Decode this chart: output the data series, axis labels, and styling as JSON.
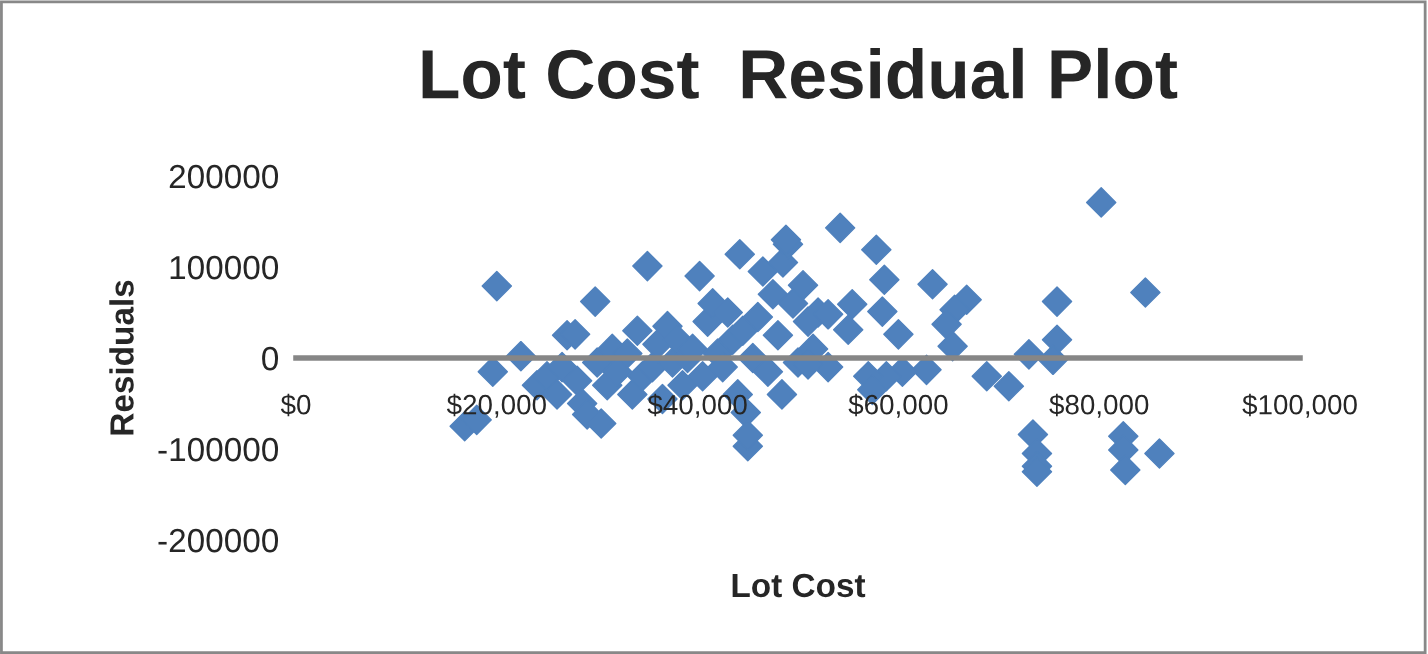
{
  "chart_data": {
    "type": "scatter",
    "title": "Lot Cost  Residual Plot",
    "xlabel": "Lot Cost",
    "ylabel": "Residuals",
    "series": [
      {
        "color": "#4f81bd",
        "x": [
          16800,
          18000,
          19600,
          20000,
          22400,
          24000,
          25000,
          26000,
          26500,
          27000,
          27800,
          28000,
          28500,
          29000,
          29800,
          30400,
          30000,
          31000,
          31500,
          32000,
          33000,
          33500,
          34000,
          34500,
          35000,
          35500,
          36000,
          36500,
          37000,
          37500,
          38000,
          38500,
          39000,
          39500,
          40200,
          40500,
          41000,
          41500,
          42000,
          42500,
          43000,
          43500,
          44000,
          44200,
          44500,
          44800,
          45000,
          45000,
          45500,
          46000,
          46500,
          47000,
          47500,
          48000,
          48500,
          49000,
          49500,
          50000,
          50500,
          51000,
          51500,
          52000,
          53000,
          54200,
          57800,
          58600,
          48800,
          63400,
          66800,
          65600,
          75800,
          64800,
          65400,
          60000,
          55400,
          58400,
          55000,
          53000,
          75800,
          73000,
          75400,
          68800,
          71000,
          62800,
          60400,
          58800,
          57000,
          57400,
          51000,
          48400,
          73400,
          73800,
          73800,
          73800,
          80200,
          84600,
          82400,
          82400,
          82600,
          86000
        ],
        "values": [
          -75000,
          -68000,
          -15000,
          79000,
          2000,
          -30000,
          -20000,
          -40000,
          -10000,
          25000,
          26000,
          -25000,
          -50000,
          -62000,
          62000,
          -72000,
          -5000,
          -30000,
          10000,
          -15000,
          5000,
          -40000,
          30000,
          -20000,
          101000,
          -10000,
          15000,
          -45000,
          35000,
          -5000,
          20000,
          -30000,
          0,
          10000,
          90000,
          -20000,
          40000,
          60000,
          5000,
          -10000,
          50000,
          20000,
          -40000,
          114000,
          30000,
          -60000,
          -97000,
          -85000,
          0,
          45000,
          95000,
          -15000,
          70000,
          25000,
          105000,
          125000,
          60000,
          -5000,
          80000,
          40000,
          10000,
          50000,
          -10000,
          143000,
          119000,
          86000,
          130000,
          81000,
          64000,
          53000,
          62000,
          37000,
          13000,
          26000,
          59000,
          51000,
          31000,
          48000,
          20000,
          4000,
          -2000,
          -20000,
          -31000,
          -13000,
          -15000,
          -20000,
          -20000,
          -35000,
          -7000,
          -40000,
          -84000,
          -105000,
          -119000,
          -125000,
          171000,
          72000,
          -86000,
          -101000,
          -123000,
          -105000
        ]
      }
    ],
    "marker": "diamond",
    "grid": false,
    "legend": false,
    "xlim": [
      0,
      100000
    ],
    "xticks": [
      {
        "value": 0,
        "label": "$0"
      },
      {
        "value": 20000,
        "label": "$20,000"
      },
      {
        "value": 40000,
        "label": "$40,000"
      },
      {
        "value": 60000,
        "label": "$60,000"
      },
      {
        "value": 80000,
        "label": "$80,000"
      },
      {
        "value": 100000,
        "label": "$100,000"
      }
    ],
    "ylim": [
      -200000,
      200000
    ],
    "yticks": [
      {
        "value": -200000,
        "label": "-200000"
      },
      {
        "value": -100000,
        "label": "-100000"
      },
      0,
      100000,
      200000
    ]
  }
}
